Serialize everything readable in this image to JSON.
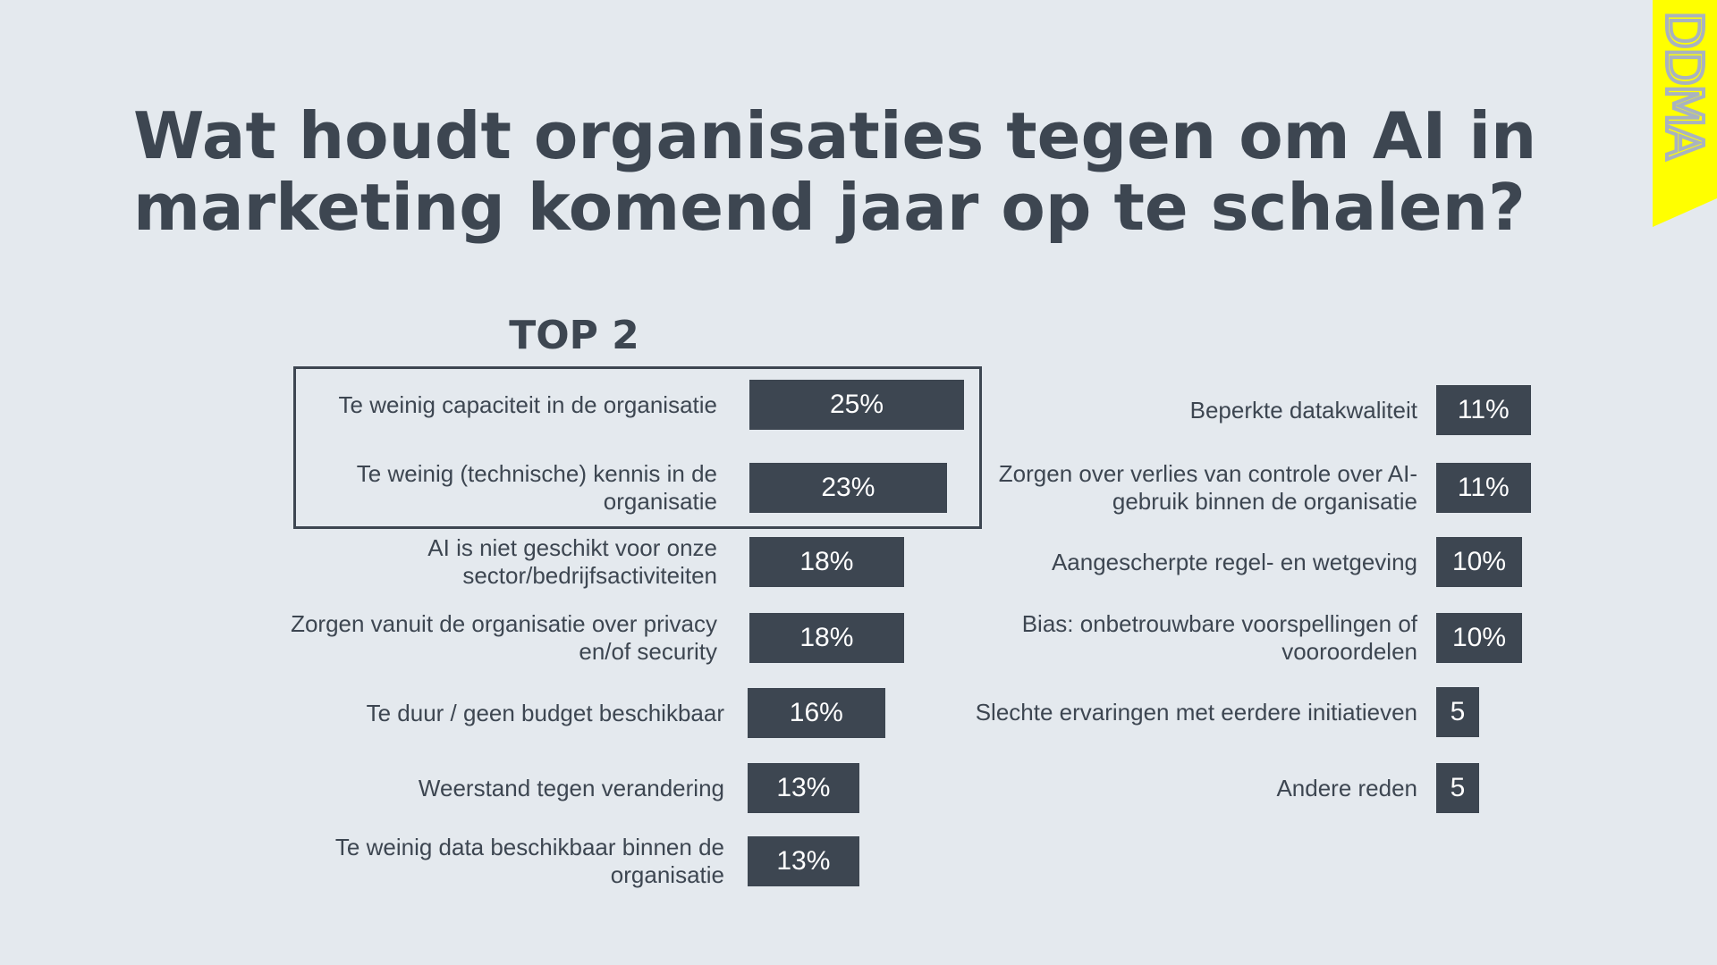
{
  "title": "Wat houdt organisaties tegen om AI in marketing komend jaar op te schalen?",
  "top_label": "TOP 2",
  "logo_text": "DDMA",
  "colors": {
    "bar": "#3d4651",
    "background": "#e4e9ee",
    "logo": "#ffff00"
  },
  "chart_data": {
    "type": "bar",
    "orientation": "horizontal",
    "title": "Wat houdt organisaties tegen om AI in marketing komend jaar op te schalen?",
    "unit": "%",
    "highlight": "TOP 2",
    "left": [
      {
        "label": "Te weinig capaciteit in de organisatie",
        "value": 25,
        "display": "25%"
      },
      {
        "label": "Te weinig (technische) kennis in de organisatie",
        "value": 23,
        "display": "23%"
      },
      {
        "label": "AI is niet geschikt voor onze sector/bedrijfsactiviteiten",
        "value": 18,
        "display": "18%"
      },
      {
        "label": "Zorgen vanuit de organisatie over privacy en/of security",
        "value": 18,
        "display": "18%"
      },
      {
        "label": "Te duur / geen budget beschikbaar",
        "value": 16,
        "display": "16%"
      },
      {
        "label": "Weerstand tegen verandering",
        "value": 13,
        "display": "13%"
      },
      {
        "label": "Te weinig data beschikbaar binnen de organisatie",
        "value": 13,
        "display": "13%"
      }
    ],
    "right": [
      {
        "label": "Beperkte datakwaliteit",
        "value": 11,
        "display": "11%"
      },
      {
        "label": "Zorgen over verlies van controle over AI-gebruik binnen de organisatie",
        "value": 11,
        "display": "11%"
      },
      {
        "label": "Aangescherpte regel- en wetgeving",
        "value": 10,
        "display": "10%"
      },
      {
        "label": "Bias: onbetrouwbare voorspellingen of vooroordelen",
        "value": 10,
        "display": "10%"
      },
      {
        "label": "Slechte ervaringen met eerdere initiatieven",
        "value": 5,
        "display": "5"
      },
      {
        "label": "Andere reden",
        "value": 5,
        "display": "5"
      }
    ]
  }
}
